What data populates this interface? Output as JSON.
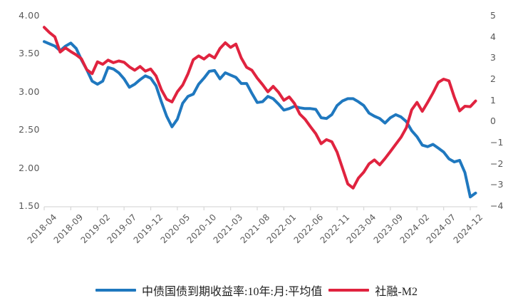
{
  "colors": {
    "yield_line": "#1f78bf",
    "tsf_m2_line": "#e0233f",
    "axis_text": "#595959",
    "axis_line": "#d9d9d9",
    "legend_text": "#1f1f1f",
    "background": "#ffffff"
  },
  "legend": {
    "items": [
      {
        "label": "中债国债到期收益率:10年:月:平均值",
        "swatch": "line",
        "color": "#1f78bf"
      },
      {
        "label": "社融-M2",
        "swatch": "line",
        "color": "#e0233f"
      }
    ]
  },
  "chart_data": {
    "type": "line",
    "title": "",
    "grid": false,
    "legend_position": "bottom",
    "x_months": [
      "2018-04",
      "2018-05",
      "2018-06",
      "2018-07",
      "2018-08",
      "2018-09",
      "2018-10",
      "2018-11",
      "2018-12",
      "2019-01",
      "2019-02",
      "2019-03",
      "2019-04",
      "2019-05",
      "2019-06",
      "2019-07",
      "2019-08",
      "2019-09",
      "2019-10",
      "2019-11",
      "2019-12",
      "2020-01",
      "2020-02",
      "2020-03",
      "2020-04",
      "2020-05",
      "2020-06",
      "2020-07",
      "2020-08",
      "2020-09",
      "2020-10",
      "2020-11",
      "2020-12",
      "2021-01",
      "2021-02",
      "2021-03",
      "2021-04",
      "2021-05",
      "2021-06",
      "2021-07",
      "2021-08",
      "2021-09",
      "2021-10",
      "2021-11",
      "2021-12",
      "2022-01",
      "2022-02",
      "2022-03",
      "2022-04",
      "2022-05",
      "2022-06",
      "2022-07",
      "2022-08",
      "2022-09",
      "2022-10",
      "2022-11",
      "2022-12",
      "2023-01",
      "2023-02",
      "2023-03",
      "2023-04",
      "2023-05",
      "2023-06",
      "2023-07",
      "2023-08",
      "2023-09",
      "2023-10",
      "2023-11",
      "2023-12",
      "2024-01",
      "2024-02",
      "2024-03",
      "2024-04",
      "2024-05",
      "2024-06",
      "2024-07",
      "2024-08",
      "2024-09",
      "2024-10",
      "2024-11",
      "2024-12",
      "2025-01"
    ],
    "x_tick_labels": [
      "2018-04",
      "2018-09",
      "2019-02",
      "2019-07",
      "2019-12",
      "2020-05",
      "2020-10",
      "2021-03",
      "2021-08",
      "2022-01",
      "2022-06",
      "2022-11",
      "2023-04",
      "2023-09",
      "2024-02",
      "2024-07",
      "2024-12"
    ],
    "x_tick_interval": 5,
    "left_axis": {
      "min": 1.5,
      "max": 4.0,
      "ticks": [
        "4.00",
        "3.50",
        "3.00",
        "2.50",
        "2.00",
        "1.50"
      ],
      "tick_values": [
        4.0,
        3.5,
        3.0,
        2.5,
        2.0,
        1.5
      ]
    },
    "right_axis": {
      "min": -4,
      "max": 5,
      "ticks": [
        "5",
        "4",
        "3",
        "2",
        "1",
        "0",
        "−1",
        "−2",
        "−3",
        "−4"
      ],
      "tick_values": [
        5,
        4,
        3,
        2,
        1,
        0,
        -1,
        -2,
        -3,
        -4
      ]
    },
    "series": [
      {
        "name": "中债国债到期收益率:10年:月:平均值",
        "axis": "left",
        "color": "#1f78bf",
        "values": [
          3.66,
          3.63,
          3.6,
          3.54,
          3.6,
          3.64,
          3.57,
          3.42,
          3.29,
          3.14,
          3.1,
          3.14,
          3.32,
          3.3,
          3.25,
          3.17,
          3.06,
          3.1,
          3.16,
          3.21,
          3.18,
          3.08,
          2.87,
          2.68,
          2.54,
          2.64,
          2.85,
          2.94,
          2.97,
          3.1,
          3.18,
          3.27,
          3.28,
          3.17,
          3.25,
          3.22,
          3.19,
          3.11,
          3.11,
          2.98,
          2.86,
          2.87,
          2.94,
          2.91,
          2.84,
          2.76,
          2.78,
          2.81,
          2.79,
          2.78,
          2.78,
          2.77,
          2.66,
          2.65,
          2.7,
          2.82,
          2.88,
          2.91,
          2.91,
          2.87,
          2.82,
          2.72,
          2.68,
          2.65,
          2.59,
          2.66,
          2.7,
          2.67,
          2.61,
          2.49,
          2.41,
          2.3,
          2.28,
          2.31,
          2.26,
          2.21,
          2.12,
          2.08,
          2.1,
          1.94,
          1.62,
          1.67
        ]
      },
      {
        "name": "社融-M2",
        "axis": "right",
        "color": "#e0233f",
        "values": [
          4.45,
          4.2,
          4.0,
          3.28,
          3.48,
          3.3,
          3.15,
          2.96,
          2.45,
          2.26,
          2.82,
          2.7,
          2.9,
          2.78,
          2.86,
          2.8,
          2.58,
          2.42,
          2.6,
          2.38,
          2.48,
          2.15,
          1.5,
          1.05,
          0.92,
          1.4,
          1.72,
          2.25,
          2.92,
          3.1,
          2.95,
          3.15,
          3.0,
          3.45,
          3.72,
          3.5,
          3.66,
          3.0,
          2.56,
          2.42,
          2.05,
          1.74,
          1.4,
          1.66,
          1.38,
          1.0,
          1.16,
          0.85,
          0.35,
          0.1,
          -0.25,
          -0.58,
          -1.05,
          -0.86,
          -0.96,
          -1.45,
          -2.2,
          -2.95,
          -3.15,
          -2.68,
          -2.4,
          -2.0,
          -1.82,
          -2.05,
          -1.75,
          -1.42,
          -1.08,
          -0.75,
          -0.3,
          0.55,
          0.9,
          0.48,
          0.9,
          1.35,
          1.85,
          2.0,
          1.92,
          1.15,
          0.5,
          0.72,
          0.7,
          0.97
        ]
      }
    ]
  }
}
